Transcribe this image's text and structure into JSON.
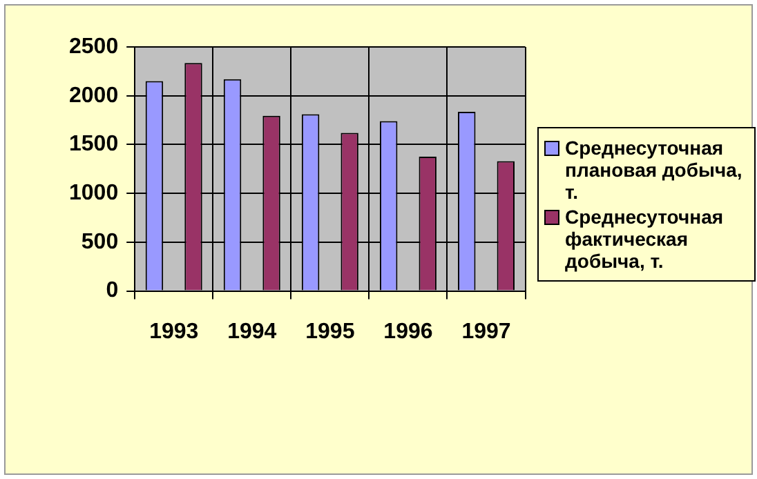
{
  "chart_data": {
    "type": "bar",
    "categories": [
      "1993",
      "1994",
      "1995",
      "1996",
      "1997"
    ],
    "series": [
      {
        "name": "Среднесуточная плановая добыча, т.",
        "color": "#9999ff",
        "values": [
          2150,
          2170,
          1810,
          1740,
          1835
        ]
      },
      {
        "name": "Среднесуточная фактическая добыча, т.",
        "color": "#993366",
        "values": [
          2335,
          1795,
          1620,
          1375,
          1330
        ]
      }
    ],
    "ylim": [
      0,
      2500
    ],
    "yticks": [
      0,
      500,
      1000,
      1500,
      2000,
      2500
    ],
    "grid": true,
    "legend": "right"
  }
}
